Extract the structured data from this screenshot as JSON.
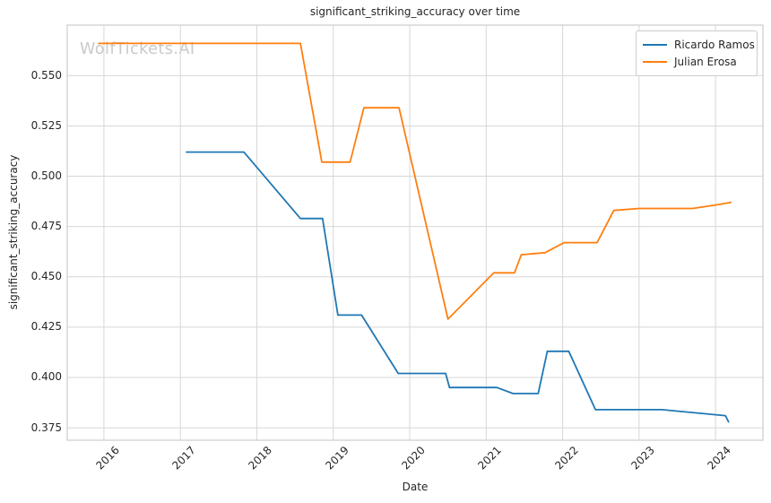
{
  "chart_data": {
    "type": "line",
    "title": "significant_striking_accuracy over time",
    "xlabel": "Date",
    "ylabel": "significant_striking_accuracy",
    "watermark": "WolfTickets.AI",
    "grid": true,
    "legend_position": "upper right",
    "x_tick_labels": [
      "2016",
      "2017",
      "2018",
      "2019",
      "2020",
      "2021",
      "2022",
      "2023",
      "2024"
    ],
    "x_tick_values": [
      2016,
      2017,
      2018,
      2019,
      2020,
      2021,
      2022,
      2023,
      2024
    ],
    "y_tick_labels": [
      "0.375",
      "0.400",
      "0.425",
      "0.450",
      "0.475",
      "0.500",
      "0.525",
      "0.550"
    ],
    "y_tick_values": [
      0.375,
      0.4,
      0.425,
      0.45,
      0.475,
      0.5,
      0.525,
      0.55
    ],
    "xlim": [
      2015.52,
      2024.62
    ],
    "ylim": [
      0.3688,
      0.5751
    ],
    "series": [
      {
        "name": "Ricardo Ramos",
        "color": "#1f77b4",
        "points": [
          [
            2017.08,
            0.512
          ],
          [
            2017.83,
            0.512
          ],
          [
            2018.57,
            0.479
          ],
          [
            2018.86,
            0.479
          ],
          [
            2019.06,
            0.431
          ],
          [
            2019.37,
            0.431
          ],
          [
            2019.85,
            0.402
          ],
          [
            2020.47,
            0.402
          ],
          [
            2020.52,
            0.395
          ],
          [
            2021.14,
            0.395
          ],
          [
            2021.35,
            0.392
          ],
          [
            2021.68,
            0.392
          ],
          [
            2021.8,
            0.413
          ],
          [
            2022.08,
            0.413
          ],
          [
            2022.43,
            0.384
          ],
          [
            2023.3,
            0.384
          ],
          [
            2024.13,
            0.381
          ],
          [
            2024.17,
            0.378
          ]
        ]
      },
      {
        "name": "Julian Erosa",
        "color": "#ff7f0e",
        "points": [
          [
            2015.93,
            0.566
          ],
          [
            2018.57,
            0.566
          ],
          [
            2018.85,
            0.507
          ],
          [
            2019.22,
            0.507
          ],
          [
            2019.4,
            0.534
          ],
          [
            2019.86,
            0.534
          ],
          [
            2020.5,
            0.429
          ],
          [
            2021.1,
            0.452
          ],
          [
            2021.37,
            0.452
          ],
          [
            2021.46,
            0.461
          ],
          [
            2021.77,
            0.462
          ],
          [
            2022.02,
            0.467
          ],
          [
            2022.45,
            0.467
          ],
          [
            2022.67,
            0.483
          ],
          [
            2023.0,
            0.484
          ],
          [
            2023.7,
            0.484
          ],
          [
            2024.05,
            0.486
          ],
          [
            2024.2,
            0.487
          ]
        ]
      }
    ]
  },
  "colors": {
    "grid": "#d7d7d7",
    "spine": "#cccccc",
    "text": "#262626",
    "watermark": "#c9c9c9",
    "background": "#ffffff"
  }
}
